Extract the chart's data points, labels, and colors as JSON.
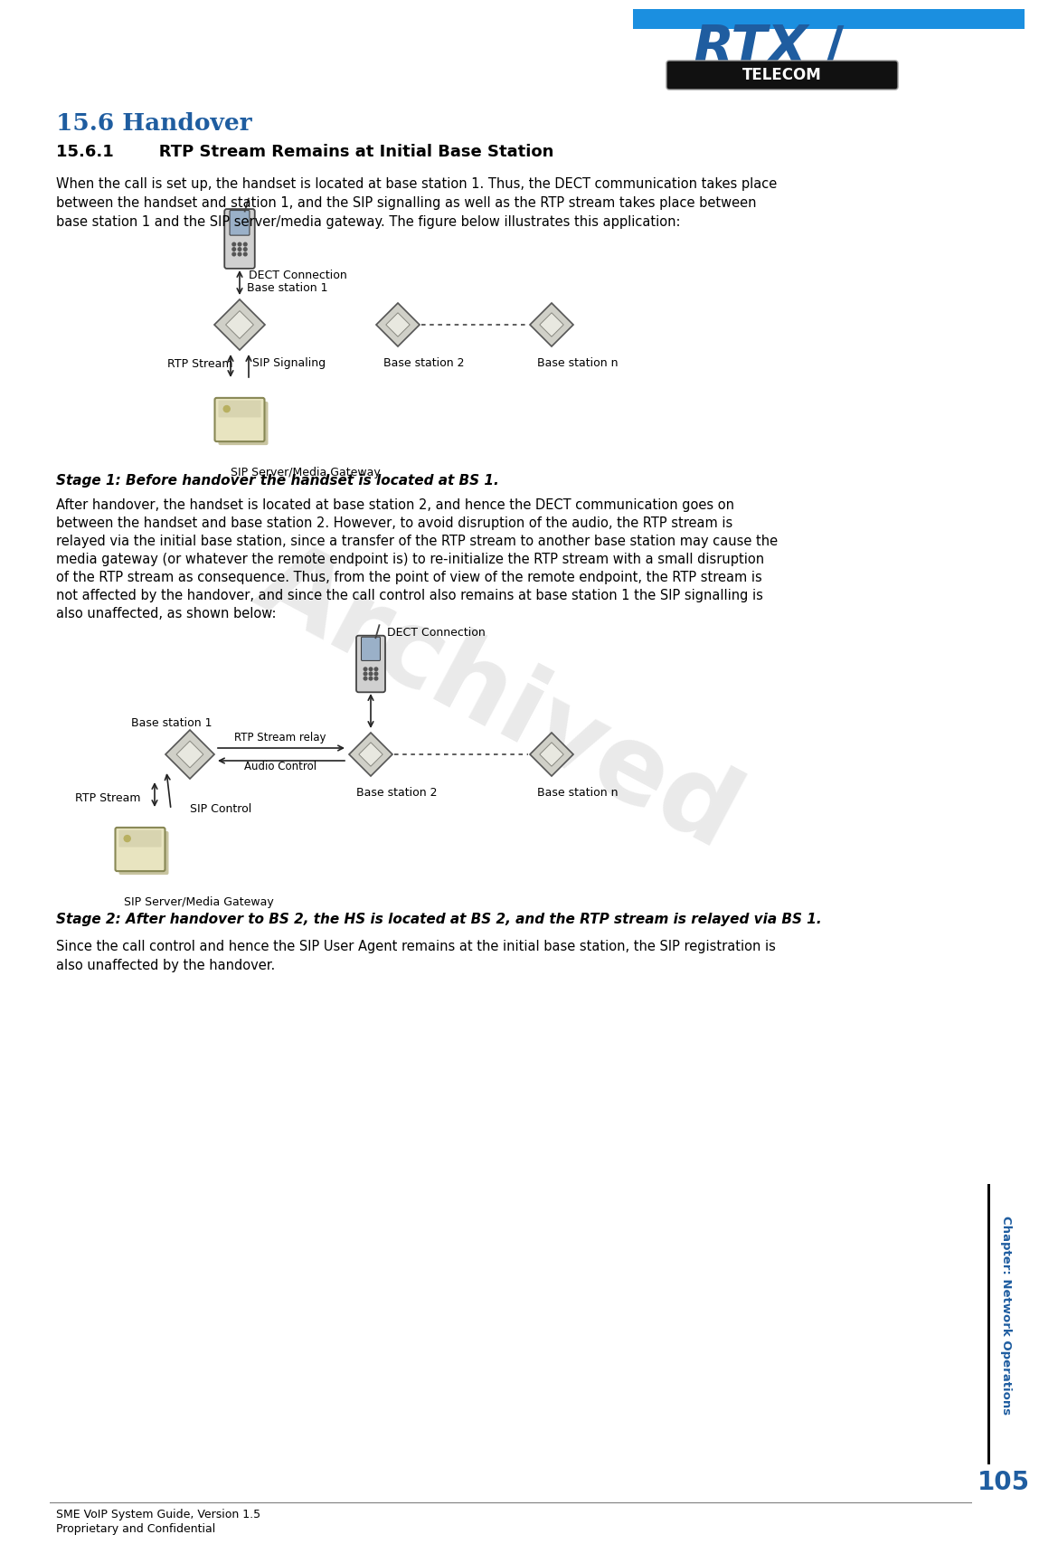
{
  "title_section": "15.6 Handover",
  "subsection_title": "15.6.1        RTP Stream Remains at Initial Base Station",
  "body_text_1": "When the call is set up, the handset is located at base station 1. Thus, the DECT communication takes place\nbetween the handset and station 1, and the SIP signalling as well as the RTP stream takes place between\nbase station 1 and the SIP server/media gateway. The figure below illustrates this application:",
  "stage1_label": "Stage 1: Before handover the handset is located at BS 1.",
  "body_text_2": "After handover, the handset is located at base station 2, and hence the DECT communication goes on\nbetween the handset and base station 2. However, to avoid disruption of the audio, the RTP stream is\nrelayed via the initial base station, since a transfer of the RTP stream to another base station may cause the\nmedia gateway (or whatever the remote endpoint is) to re-initialize the RTP stream with a small disruption\nof the RTP stream as consequence. Thus, from the point of view of the remote endpoint, the RTP stream is\nnot affected by the handover, and since the call control also remains at base station 1 the SIP signalling is\nalso unaffected, as shown below:",
  "stage2_label": "Stage 2: After handover to BS 2, the HS is located at BS 2, and the RTP stream is relayed via BS 1.",
  "body_text_3": "Since the call control and hence the SIP User Agent remains at the initial base station, the SIP registration is\nalso unaffected by the handover.",
  "footer_left_1": "SME VoIP System Guide, Version 1.5",
  "footer_left_2": "Proprietary and Confidential",
  "footer_page": "105",
  "footer_chapter": "Chapter: Network Operations",
  "accent_color": "#1F5DA0",
  "text_color": "#000000",
  "bg_color": "#ffffff",
  "header_bar_color": "#1B8FE0",
  "fig_width": 11.23,
  "fig_height": 16.84
}
